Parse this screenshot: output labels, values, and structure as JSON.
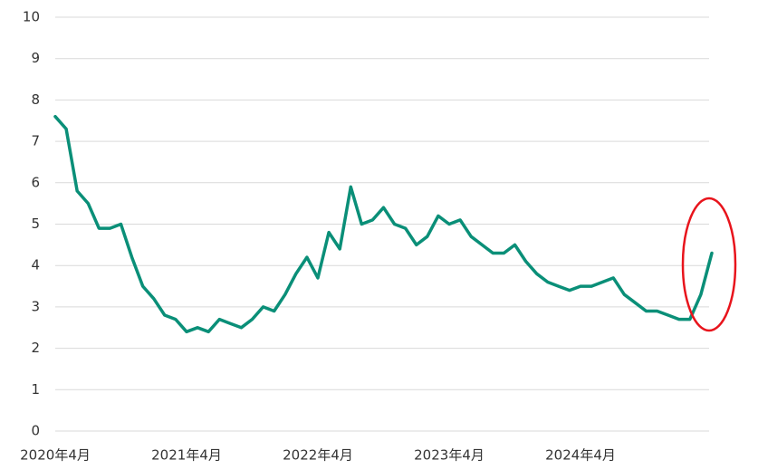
{
  "chart_data": {
    "type": "line",
    "categories": [
      "2020年4月",
      null,
      null,
      null,
      null,
      null,
      null,
      null,
      null,
      null,
      null,
      null,
      "2021年4月",
      null,
      null,
      null,
      null,
      null,
      null,
      null,
      null,
      null,
      null,
      null,
      "2022年4月",
      null,
      null,
      null,
      null,
      null,
      null,
      null,
      null,
      null,
      null,
      null,
      "2023年4月",
      null,
      null,
      null,
      null,
      null,
      null,
      null,
      null,
      null,
      null,
      null,
      "2024年4月",
      null,
      null,
      null,
      null,
      null,
      null,
      null,
      null,
      null,
      null,
      null,
      null
    ],
    "series": [
      {
        "color": "#0a8f78",
        "values": [
          7.6,
          7.3,
          5.8,
          5.5,
          4.9,
          4.9,
          5.0,
          4.2,
          3.5,
          3.2,
          2.8,
          2.7,
          2.4,
          2.5,
          2.4,
          2.7,
          2.6,
          2.5,
          2.7,
          3.0,
          2.9,
          3.3,
          3.8,
          4.2,
          3.7,
          4.8,
          4.4,
          5.9,
          5.0,
          5.1,
          5.4,
          5.0,
          4.9,
          4.5,
          4.7,
          5.2,
          5.0,
          5.1,
          4.7,
          4.5,
          4.3,
          4.3,
          4.5,
          4.1,
          3.8,
          3.6,
          3.5,
          3.4,
          3.5,
          3.5,
          3.6,
          3.7,
          3.3,
          3.1,
          2.9,
          2.9,
          2.8,
          2.7,
          2.7,
          3.3,
          4.3
        ]
      }
    ],
    "ylim": [
      0,
      10
    ],
    "yticks": [
      0,
      1,
      2,
      3,
      4,
      5,
      6,
      7,
      8,
      9,
      10
    ],
    "grid": true
  }
}
